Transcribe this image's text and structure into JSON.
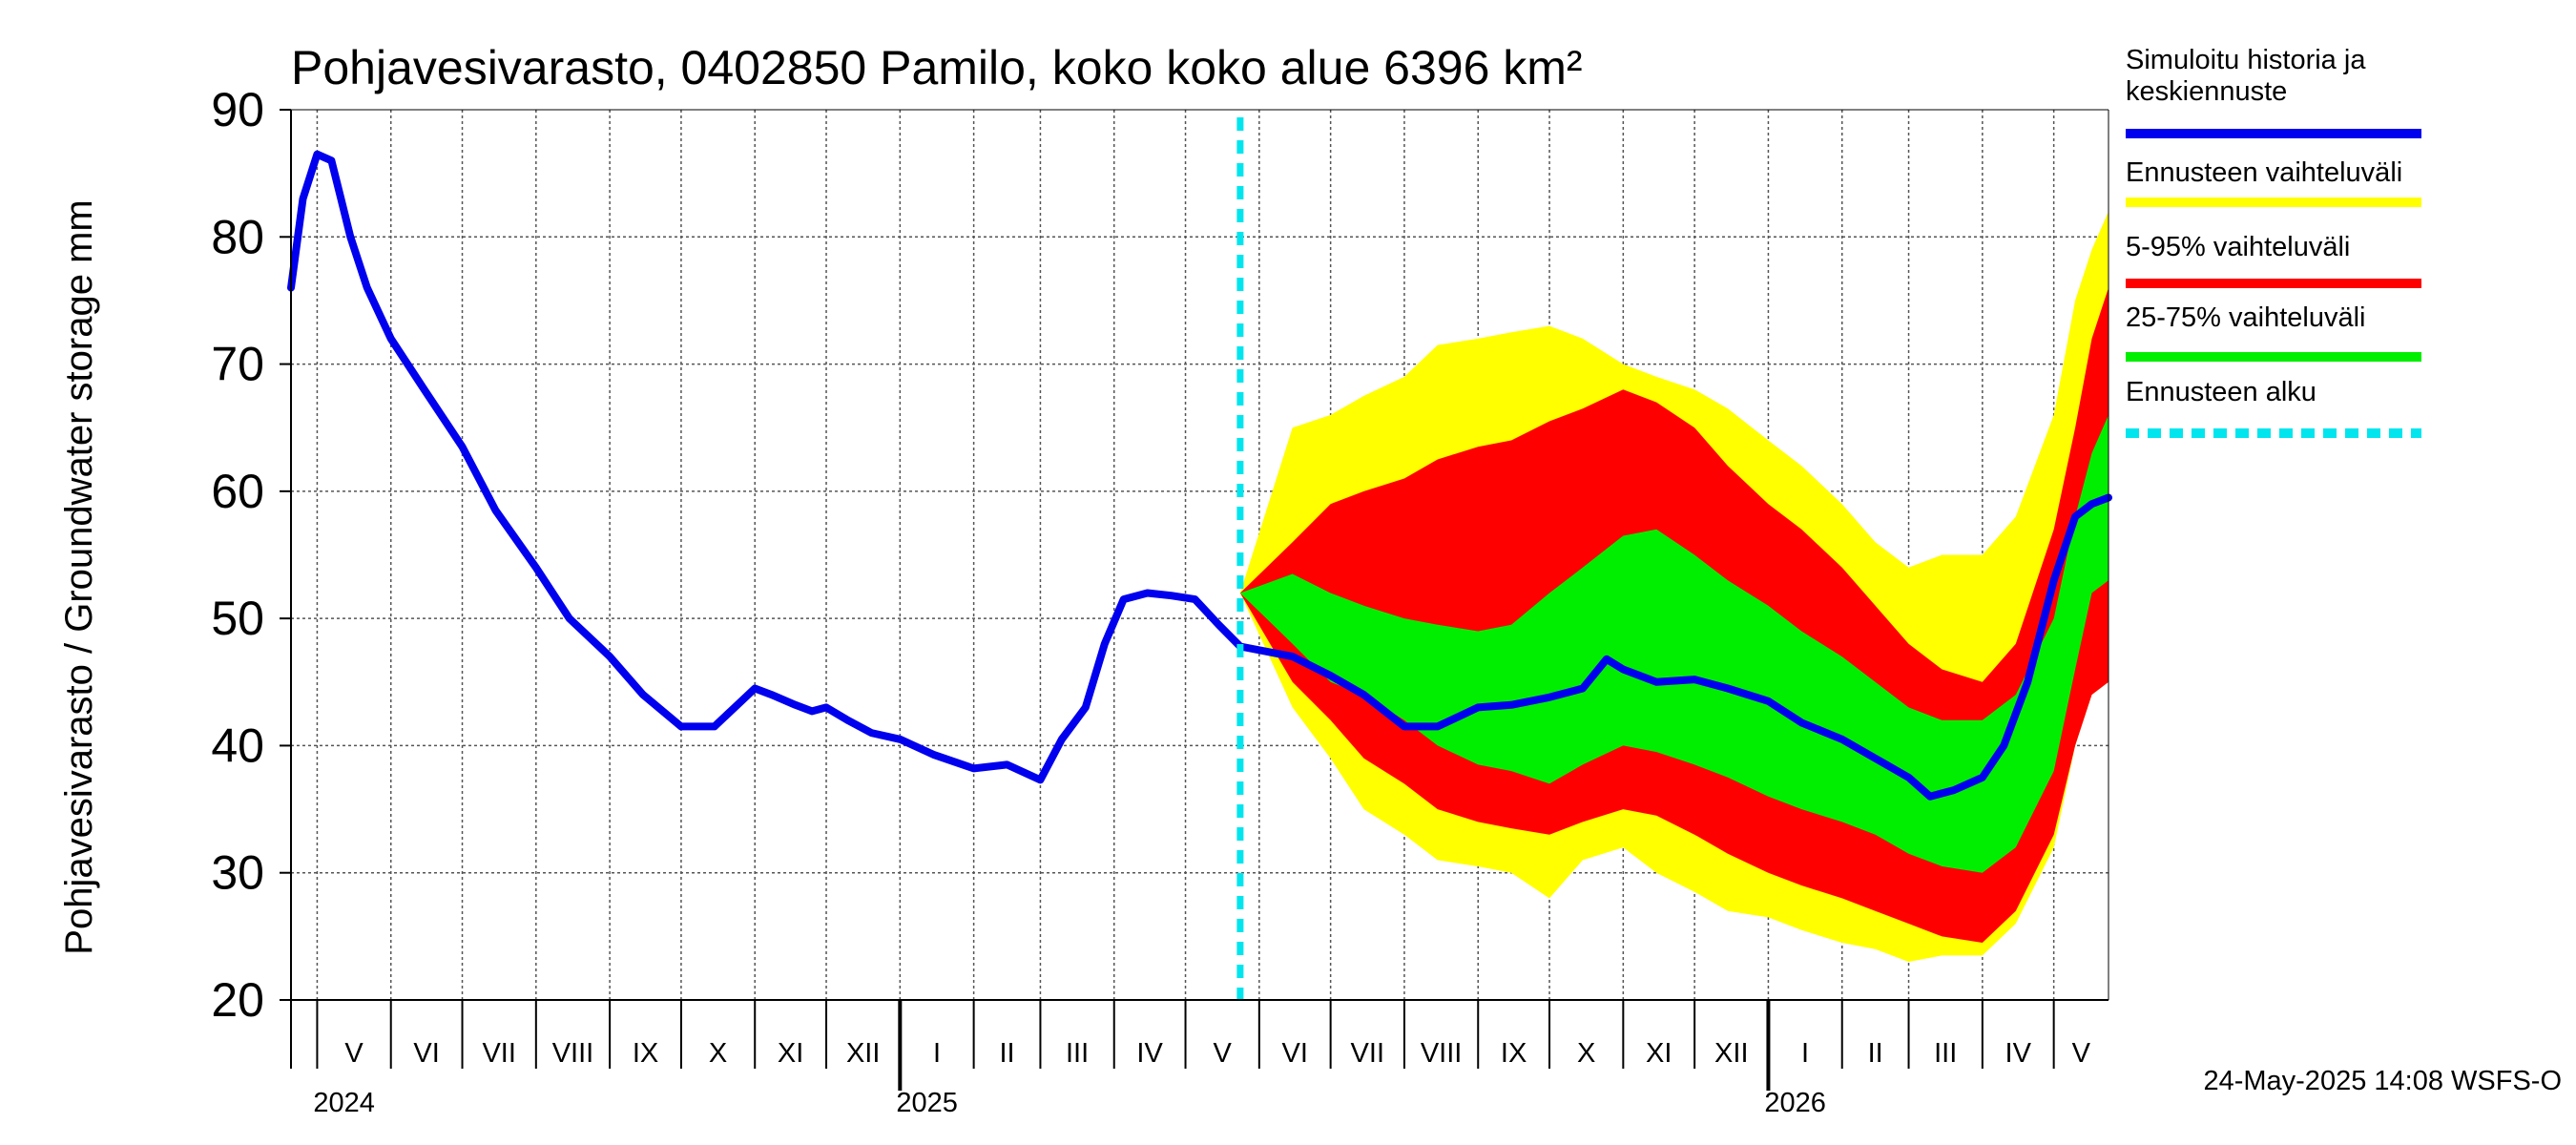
{
  "chart_data": {
    "type": "area",
    "title": "Pohjavesivarasto, 0402850 Pamilo, koko koko alue 6396 km²",
    "ylabel": "Pohjavesivarasto / Groundwater storage   mm",
    "ylim": [
      20,
      90
    ],
    "yticks": [
      "20",
      "30",
      "40",
      "50",
      "60",
      "70",
      "80",
      "90"
    ],
    "xrange": [
      "2024-04-20",
      "2026-05-24"
    ],
    "forecast_start": "2025-05-24",
    "grid": true,
    "legend_position": "right",
    "months": [
      {
        "label": "V",
        "start": "2024-05-01",
        "end": "2024-06-01"
      },
      {
        "label": "VI",
        "start": "2024-06-01",
        "end": "2024-07-01"
      },
      {
        "label": "VII",
        "start": "2024-07-01",
        "end": "2024-08-01"
      },
      {
        "label": "VIII",
        "start": "2024-08-01",
        "end": "2024-09-01"
      },
      {
        "label": "IX",
        "start": "2024-09-01",
        "end": "2024-10-01"
      },
      {
        "label": "X",
        "start": "2024-10-01",
        "end": "2024-11-01"
      },
      {
        "label": "XI",
        "start": "2024-11-01",
        "end": "2024-12-01"
      },
      {
        "label": "XII",
        "start": "2024-12-01",
        "end": "2025-01-01"
      },
      {
        "label": "I",
        "start": "2025-01-01",
        "end": "2025-02-01"
      },
      {
        "label": "II",
        "start": "2025-02-01",
        "end": "2025-03-01"
      },
      {
        "label": "III",
        "start": "2025-03-01",
        "end": "2025-04-01"
      },
      {
        "label": "IV",
        "start": "2025-04-01",
        "end": "2025-05-01"
      },
      {
        "label": "V",
        "start": "2025-05-01",
        "end": "2025-06-01"
      },
      {
        "label": "VI",
        "start": "2025-06-01",
        "end": "2025-07-01"
      },
      {
        "label": "VII",
        "start": "2025-07-01",
        "end": "2025-08-01"
      },
      {
        "label": "VIII",
        "start": "2025-08-01",
        "end": "2025-09-01"
      },
      {
        "label": "IX",
        "start": "2025-09-01",
        "end": "2025-10-01"
      },
      {
        "label": "X",
        "start": "2025-10-01",
        "end": "2025-11-01"
      },
      {
        "label": "XI",
        "start": "2025-11-01",
        "end": "2025-12-01"
      },
      {
        "label": "XII",
        "start": "2025-12-01",
        "end": "2026-01-01"
      },
      {
        "label": "I",
        "start": "2026-01-01",
        "end": "2026-02-01"
      },
      {
        "label": "II",
        "start": "2026-02-01",
        "end": "2026-03-01"
      },
      {
        "label": "III",
        "start": "2026-03-01",
        "end": "2026-04-01"
      },
      {
        "label": "IV",
        "start": "2026-04-01",
        "end": "2026-05-01"
      },
      {
        "label": "V",
        "start": "2026-05-01",
        "end": "2026-05-24"
      }
    ],
    "years": [
      {
        "label": "2024",
        "date": "2024-05-01"
      },
      {
        "label": "2025",
        "date": "2025-01-01"
      },
      {
        "label": "2026",
        "date": "2026-01-01"
      }
    ],
    "series": [
      {
        "name": "Simuloitu historia ja keskiennuste",
        "color": "#0000ee",
        "x": [
          "2024-04-20",
          "2024-04-25",
          "2024-05-01",
          "2024-05-07",
          "2024-05-11",
          "2024-05-15",
          "2024-05-22",
          "2024-06-01",
          "2024-06-15",
          "2024-07-01",
          "2024-07-15",
          "2024-08-01",
          "2024-08-15",
          "2024-09-01",
          "2024-09-15",
          "2024-10-01",
          "2024-10-15",
          "2024-11-01",
          "2024-11-08",
          "2024-11-18",
          "2024-11-25",
          "2024-12-01",
          "2024-12-10",
          "2024-12-20",
          "2025-01-01",
          "2025-01-15",
          "2025-02-01",
          "2025-02-15",
          "2025-03-01",
          "2025-03-10",
          "2025-03-20",
          "2025-03-28",
          "2025-04-05",
          "2025-04-15",
          "2025-04-25",
          "2025-05-05",
          "2025-05-15",
          "2025-05-24",
          "2025-06-15",
          "2025-07-01",
          "2025-07-15",
          "2025-08-01",
          "2025-08-15",
          "2025-09-01",
          "2025-09-15",
          "2025-10-01",
          "2025-10-15",
          "2025-10-25",
          "2025-11-01",
          "2025-11-15",
          "2025-12-01",
          "2025-12-15",
          "2026-01-01",
          "2026-01-15",
          "2026-02-01",
          "2026-02-15",
          "2026-03-01",
          "2026-03-10",
          "2026-03-20",
          "2026-04-01",
          "2026-04-10",
          "2026-04-20",
          "2026-05-01",
          "2026-05-10",
          "2026-05-17",
          "2026-05-24"
        ],
        "values": [
          76,
          83,
          86.5,
          86,
          83,
          80,
          76,
          72,
          68,
          63.5,
          58.5,
          54,
          50,
          47,
          44,
          41.5,
          41.5,
          44.5,
          44,
          43.2,
          42.7,
          43,
          42,
          41,
          40.5,
          39.3,
          38.2,
          38.5,
          37.3,
          40.5,
          43,
          48,
          51.5,
          52,
          51.8,
          51.5,
          49.5,
          47.8,
          47,
          45.5,
          44,
          41.5,
          41.5,
          43,
          43.2,
          43.8,
          44.5,
          46.8,
          46,
          45,
          45.2,
          44.5,
          43.5,
          41.8,
          40.5,
          39,
          37.5,
          36,
          36.5,
          37.5,
          40,
          45,
          53,
          58,
          59,
          59.5
        ]
      }
    ],
    "bands": [
      {
        "name": "Ennusteen vaihteluväli",
        "color": "#ffff00",
        "x": [
          "2025-05-24",
          "2025-06-15",
          "2025-07-01",
          "2025-07-15",
          "2025-08-01",
          "2025-08-15",
          "2025-09-01",
          "2025-09-15",
          "2025-10-01",
          "2025-10-15",
          "2025-11-01",
          "2025-11-15",
          "2025-12-01",
          "2025-12-15",
          "2026-01-01",
          "2026-01-15",
          "2026-02-01",
          "2026-02-15",
          "2026-03-01",
          "2026-03-15",
          "2026-04-01",
          "2026-04-15",
          "2026-05-01",
          "2026-05-10",
          "2026-05-17",
          "2026-05-24"
        ],
        "upper": [
          52,
          65,
          66,
          67.5,
          69,
          71.5,
          72,
          72.5,
          73,
          72,
          70,
          69,
          68,
          66.5,
          64,
          62,
          59,
          56,
          54,
          55,
          55,
          58,
          66,
          75,
          79,
          82
        ],
        "lower": [
          52,
          43,
          39,
          35,
          33,
          31,
          30.5,
          30,
          28,
          31,
          32,
          30,
          28.5,
          27,
          26.5,
          25.5,
          24.5,
          24,
          23,
          23.5,
          23.5,
          26,
          32,
          40,
          44,
          45
        ]
      },
      {
        "name": "5-95% vaihteluväli",
        "color": "#ff0000",
        "x": [
          "2025-05-24",
          "2025-06-15",
          "2025-07-01",
          "2025-07-15",
          "2025-08-01",
          "2025-08-15",
          "2025-09-01",
          "2025-09-15",
          "2025-10-01",
          "2025-10-15",
          "2025-11-01",
          "2025-11-15",
          "2025-12-01",
          "2025-12-15",
          "2026-01-01",
          "2026-01-15",
          "2026-02-01",
          "2026-02-15",
          "2026-03-01",
          "2026-03-15",
          "2026-04-01",
          "2026-04-15",
          "2026-05-01",
          "2026-05-10",
          "2026-05-17",
          "2026-05-24"
        ],
        "upper": [
          52,
          56,
          59,
          60,
          61,
          62.5,
          63.5,
          64,
          65.5,
          66.5,
          68,
          67,
          65,
          62,
          59,
          57,
          54,
          51,
          48,
          46,
          45,
          48,
          57,
          65,
          72,
          76
        ],
        "lower": [
          52,
          45,
          42,
          39,
          37,
          35,
          34,
          33.5,
          33,
          34,
          35,
          34.5,
          33,
          31.5,
          30,
          29,
          28,
          27,
          26,
          25,
          24.5,
          27,
          33,
          40,
          44,
          45
        ]
      },
      {
        "name": "25-75% vaihteluväli",
        "color": "#00ee00",
        "x": [
          "2025-05-24",
          "2025-06-15",
          "2025-07-01",
          "2025-07-15",
          "2025-08-01",
          "2025-08-15",
          "2025-09-01",
          "2025-09-15",
          "2025-10-01",
          "2025-10-15",
          "2025-11-01",
          "2025-11-15",
          "2025-12-01",
          "2025-12-15",
          "2026-01-01",
          "2026-01-15",
          "2026-02-01",
          "2026-02-15",
          "2026-03-01",
          "2026-03-15",
          "2026-04-01",
          "2026-04-15",
          "2026-05-01",
          "2026-05-10",
          "2026-05-17",
          "2026-05-24"
        ],
        "upper": [
          52,
          53.5,
          52,
          51,
          50,
          49.5,
          49,
          49.5,
          52,
          54,
          56.5,
          57,
          55,
          53,
          51,
          49,
          47,
          45,
          43,
          42,
          42,
          44,
          50,
          58,
          63,
          66
        ],
        "lower": [
          52,
          48,
          45,
          44,
          42,
          40,
          38.5,
          38,
          37,
          38.5,
          40,
          39.5,
          38.5,
          37.5,
          36,
          35,
          34,
          33,
          31.5,
          30.5,
          30,
          32,
          38,
          46,
          52,
          53
        ]
      }
    ],
    "legend": [
      {
        "label": "Simuloitu historia ja",
        "label2": "keskiennuste",
        "color": "#0000ee",
        "style": "solid"
      },
      {
        "label": "Ennusteen vaihteluväli",
        "color": "#ffff00",
        "style": "solid"
      },
      {
        "label": "5-95% vaihteluväli",
        "color": "#ff0000",
        "style": "solid"
      },
      {
        "label": "25-75% vaihteluväli",
        "color": "#00ee00",
        "style": "solid"
      },
      {
        "label": "Ennusteen alku",
        "color": "#00e5ee",
        "style": "dashed"
      }
    ]
  },
  "footer": "24-May-2025 14:08 WSFS-O"
}
